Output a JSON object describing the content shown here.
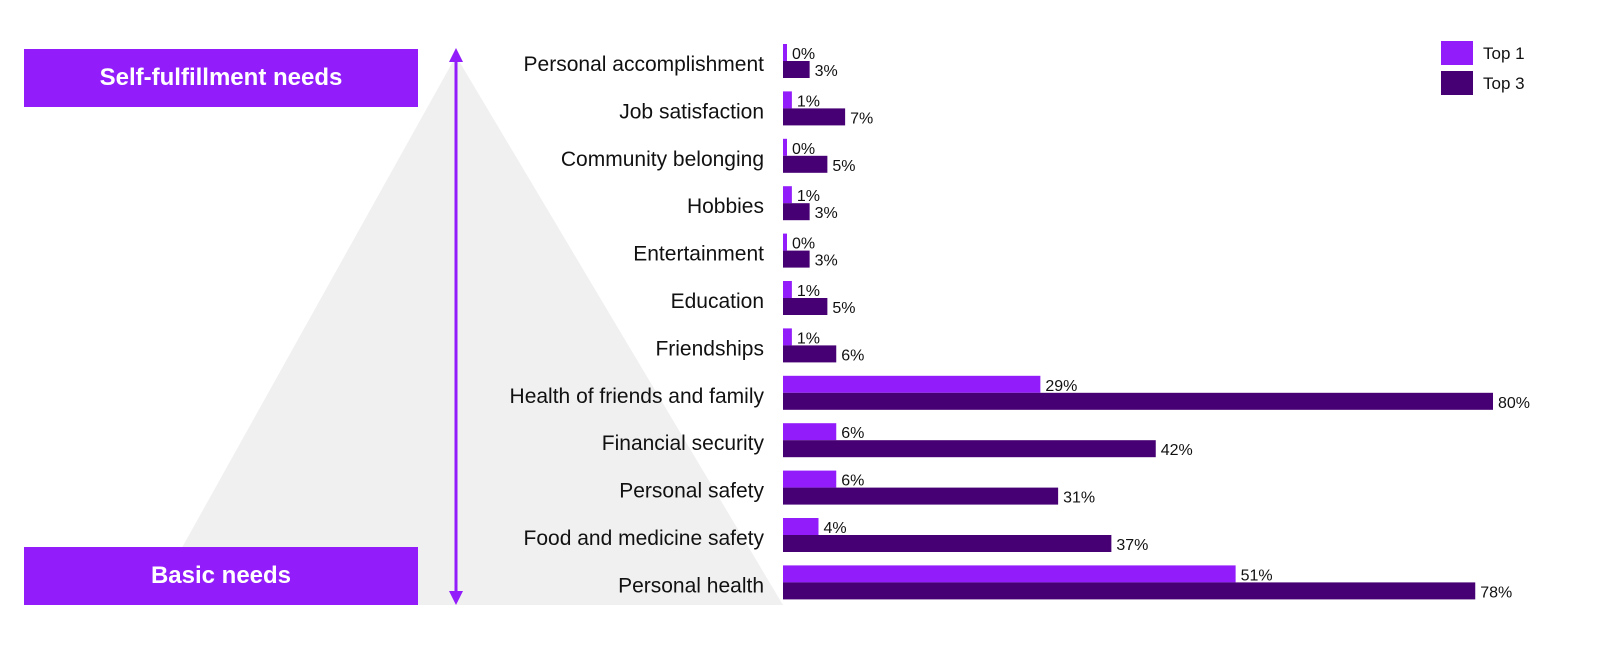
{
  "pyramid": {
    "top_label": "Self-fulfillment needs",
    "bottom_label": "Basic needs",
    "box_color": "#921dfa",
    "arrow_color": "#921dfa",
    "triangle_color": "#f0f0f0"
  },
  "chart_data": {
    "type": "bar",
    "orientation": "horizontal",
    "categories": [
      "Personal accomplishment",
      "Job satisfaction",
      "Community belonging",
      "Hobbies",
      "Entertainment",
      "Education",
      "Friendships",
      "Health of friends and family",
      "Financial security",
      "Personal safety",
      "Food and medicine safety",
      "Personal health"
    ],
    "series": [
      {
        "name": "Top 1",
        "color": "#921dfa",
        "values": [
          0,
          1,
          0,
          1,
          0,
          1,
          1,
          29,
          6,
          6,
          4,
          51
        ]
      },
      {
        "name": "Top 3",
        "color": "#460073",
        "values": [
          3,
          7,
          5,
          3,
          3,
          5,
          6,
          80,
          42,
          31,
          37,
          78
        ]
      }
    ],
    "value_suffix": "%",
    "xlim": [
      0,
      80
    ],
    "grid": false,
    "legend_position": "top-right"
  }
}
